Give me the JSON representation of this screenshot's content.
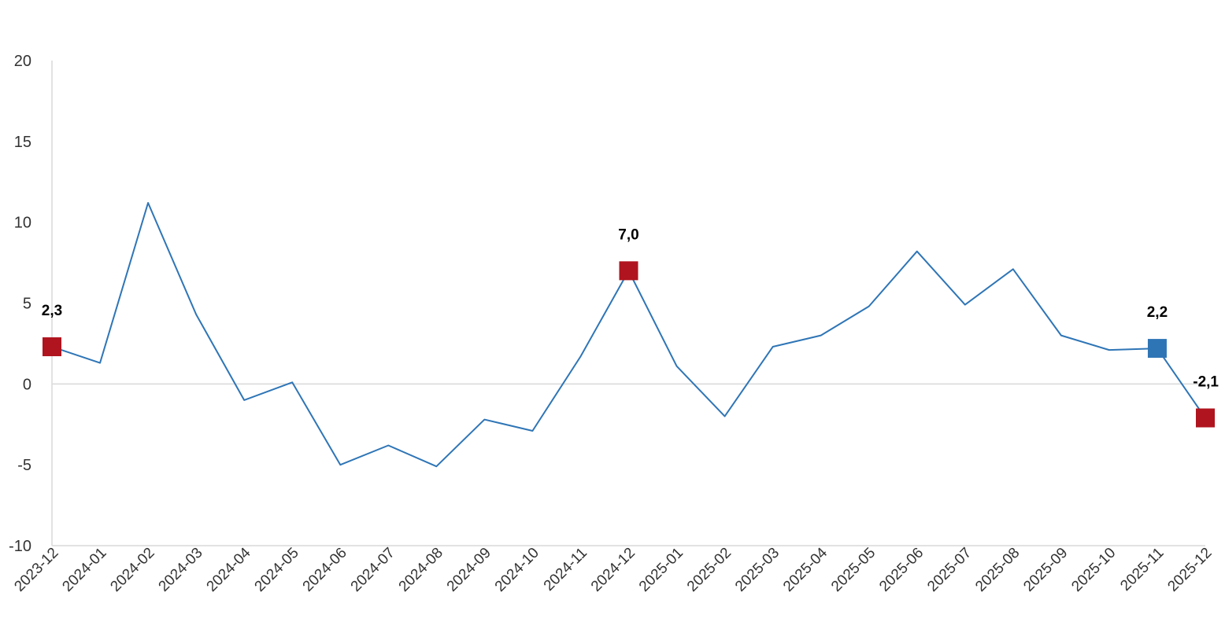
{
  "chart_data": {
    "type": "line",
    "title": "",
    "xlabel": "",
    "ylabel": "",
    "ylim": [
      -10,
      20
    ],
    "yticks": [
      "-10",
      "-5",
      "0",
      "5",
      "10",
      "15",
      "20"
    ],
    "grid": false,
    "legend": "none",
    "categories": [
      "2023-12",
      "2024-01",
      "2024-02",
      "2024-03",
      "2024-04",
      "2024-05",
      "2024-06",
      "2024-07",
      "2024-08",
      "2024-09",
      "2024-10",
      "2024-11",
      "2024-12",
      "2025-01",
      "2025-02",
      "2025-03",
      "2025-04",
      "2025-05",
      "2025-06",
      "2025-07",
      "2025-08",
      "2025-09",
      "2025-10",
      "2025-11",
      "2025-12"
    ],
    "series": [
      {
        "values": [
          2.3,
          1.3,
          11.2,
          4.3,
          -1.0,
          0.1,
          -5.0,
          -3.8,
          -5.1,
          -2.2,
          -2.9,
          1.7,
          7.0,
          1.1,
          -2.0,
          2.3,
          3.0,
          4.8,
          8.2,
          4.9,
          7.1,
          3.0,
          2.1,
          2.2,
          -2.1
        ],
        "color": "#2e75b6"
      }
    ],
    "highlights": [
      {
        "index": 0,
        "label": "2,3",
        "color": "#b0141e"
      },
      {
        "index": 12,
        "label": "7,0",
        "color": "#b0141e"
      },
      {
        "index": 23,
        "label": "2,2",
        "color": "#2e75b6"
      },
      {
        "index": 24,
        "label": "-2,1",
        "color": "#b0141e"
      }
    ],
    "colors": {
      "line": "#2e75b6",
      "axis": "#d9d9d9",
      "zero_line": "#d9d9d9",
      "marker_red": "#b0141e",
      "marker_blue": "#2e75b6"
    }
  }
}
